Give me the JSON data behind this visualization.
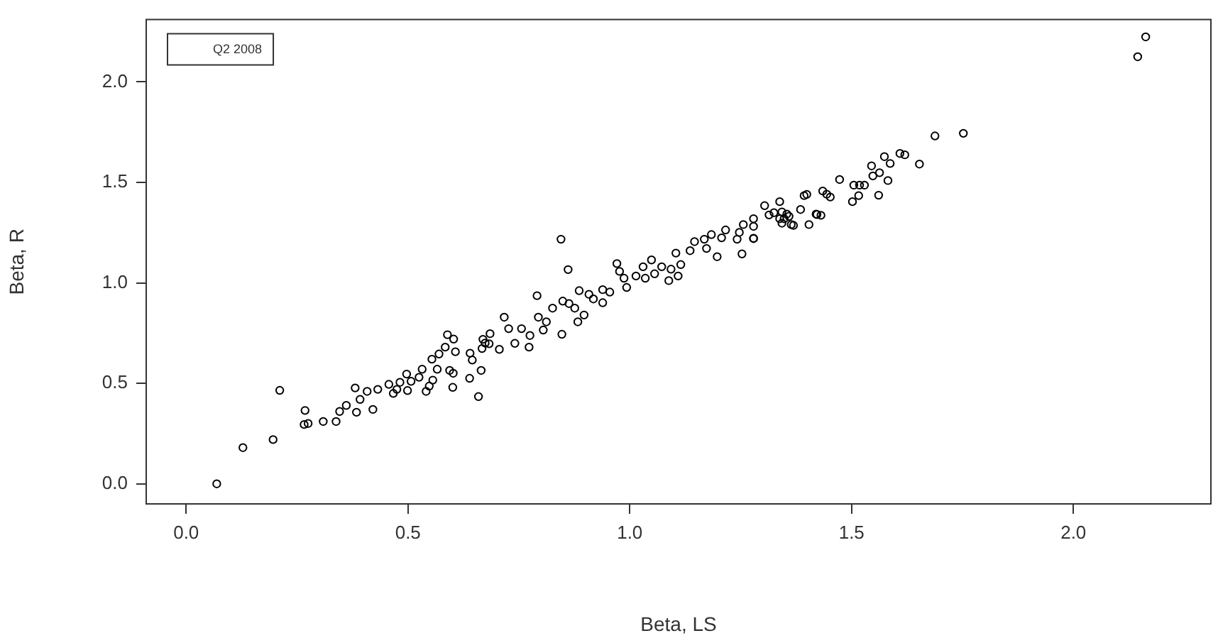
{
  "chart_data": {
    "type": "scatter",
    "xlabel": "Beta, LS",
    "ylabel": "Beta, R",
    "annotations": [
      "Q2 2008"
    ],
    "marker": "circle",
    "grid": false,
    "xlim": [
      -0.09,
      2.31
    ],
    "ylim": [
      -0.1,
      2.31
    ],
    "xticks": [
      {
        "value": 0,
        "label": "0.0"
      },
      0.5,
      {
        "value": 1,
        "label": "1.0"
      },
      1.5,
      {
        "value": 2,
        "label": "2.0"
      }
    ],
    "yticks": [
      {
        "value": 0,
        "label": "0.0"
      },
      0.5,
      {
        "value": 1,
        "label": "1.0"
      },
      1.5,
      {
        "value": 2,
        "label": "2.0"
      }
    ],
    "series": [
      {
        "color": "#000000",
        "x": [
          0.069,
          0.128,
          0.196,
          0.211,
          0.268,
          0.266,
          0.275,
          0.309,
          0.338,
          0.346,
          0.361,
          0.384,
          0.392,
          0.381,
          0.408,
          0.421,
          0.432,
          0.457,
          0.467,
          0.475,
          0.482,
          0.497,
          0.499,
          0.507,
          0.525,
          0.532,
          0.541,
          0.548,
          0.556,
          0.554,
          0.566,
          0.57,
          0.584,
          0.589,
          0.603,
          0.594,
          0.602,
          0.601,
          0.607,
          0.639,
          0.64,
          0.645,
          0.659,
          0.665,
          0.667,
          0.669,
          0.685,
          0.683,
          0.674,
          0.706,
          0.717,
          0.727,
          0.741,
          0.756,
          0.773,
          0.775,
          0.794,
          0.791,
          0.805,
          0.812,
          0.826,
          0.845,
          0.847,
          0.849,
          0.861,
          0.863,
          0.876,
          0.883,
          0.886,
          0.897,
          0.908,
          0.918,
          0.939,
          0.939,
          0.955,
          0.971,
          0.977,
          0.993,
          0.987,
          1.014,
          1.03,
          1.035,
          1.049,
          1.056,
          1.072,
          1.088,
          1.093,
          1.109,
          1.104,
          1.115,
          1.136,
          1.146,
          1.168,
          1.173,
          1.184,
          1.197,
          1.207,
          1.216,
          1.242,
          1.247,
          1.253,
          1.256,
          1.279,
          1.279,
          1.279,
          1.279,
          1.304,
          1.314,
          1.325,
          1.338,
          1.338,
          1.343,
          1.343,
          1.348,
          1.354,
          1.359,
          1.364,
          1.369,
          1.385,
          1.393,
          1.399,
          1.404,
          1.42,
          1.422,
          1.431,
          1.435,
          1.444,
          1.452,
          1.473,
          1.502,
          1.505,
          1.516,
          1.518,
          1.529,
          1.545,
          1.548,
          1.561,
          1.563,
          1.574,
          1.582,
          1.587,
          1.609,
          1.62,
          1.653,
          1.688,
          1.752,
          2.145,
          2.163
        ],
        "values": [
          0.0,
          0.18,
          0.22,
          0.465,
          0.365,
          0.295,
          0.3,
          0.31,
          0.31,
          0.36,
          0.39,
          0.356,
          0.42,
          0.477,
          0.46,
          0.37,
          0.47,
          0.495,
          0.45,
          0.47,
          0.505,
          0.546,
          0.464,
          0.51,
          0.53,
          0.57,
          0.46,
          0.486,
          0.516,
          0.62,
          0.57,
          0.646,
          0.68,
          0.742,
          0.72,
          0.564,
          0.55,
          0.48,
          0.657,
          0.525,
          0.65,
          0.616,
          0.434,
          0.564,
          0.673,
          0.719,
          0.747,
          0.697,
          0.7,
          0.669,
          0.829,
          0.772,
          0.699,
          0.772,
          0.68,
          0.738,
          0.829,
          0.936,
          0.765,
          0.806,
          0.874,
          1.217,
          0.744,
          0.909,
          1.066,
          0.897,
          0.874,
          0.806,
          0.961,
          0.84,
          0.943,
          0.92,
          0.901,
          0.966,
          0.954,
          1.096,
          1.057,
          0.977,
          1.023,
          1.034,
          1.08,
          1.023,
          1.114,
          1.045,
          1.08,
          1.011,
          1.068,
          1.034,
          1.148,
          1.091,
          1.16,
          1.205,
          1.217,
          1.171,
          1.24,
          1.13,
          1.224,
          1.263,
          1.217,
          1.251,
          1.144,
          1.29,
          1.319,
          1.22,
          1.281,
          1.222,
          1.384,
          1.338,
          1.349,
          1.404,
          1.319,
          1.297,
          1.353,
          1.319,
          1.342,
          1.331,
          1.29,
          1.286,
          1.365,
          1.434,
          1.44,
          1.29,
          1.342,
          1.34,
          1.336,
          1.457,
          1.441,
          1.427,
          1.514,
          1.404,
          1.486,
          1.434,
          1.486,
          1.486,
          1.582,
          1.532,
          1.436,
          1.548,
          1.628,
          1.509,
          1.594,
          1.644,
          1.637,
          1.591,
          1.731,
          1.744,
          2.125,
          2.224
        ]
      }
    ]
  }
}
